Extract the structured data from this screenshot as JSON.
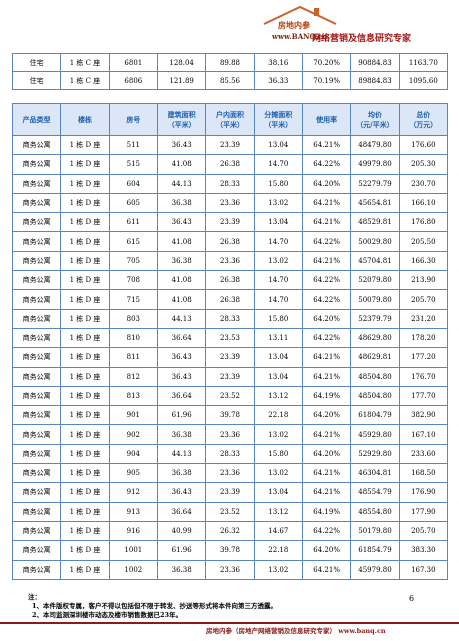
{
  "header": {
    "brand": "房地内参",
    "url": "www.BANQ.cn",
    "slogan": "网络营销及信息研究专家"
  },
  "table1": {
    "rows": [
      [
        "住宅",
        "1 栋 C 座",
        "6801",
        "128.04",
        "89.88",
        "38.16",
        "70.20%",
        "90884.83",
        "1163.70"
      ],
      [
        "住宅",
        "1 栋 C 座",
        "6806",
        "121.89",
        "85.56",
        "36.33",
        "70.19%",
        "89884.83",
        "1095.60"
      ]
    ]
  },
  "table2": {
    "columns": [
      "产品类型",
      "楼栋",
      "房号",
      "建筑面积\n（平米）",
      "户内面积\n（平米）",
      "分摊面积\n（平米）",
      "使用率",
      "均价\n（元/平米）",
      "总价\n（万元）"
    ],
    "rows": [
      [
        "商务公寓",
        "1 栋 D 座",
        "511",
        "36.43",
        "23.39",
        "13.04",
        "64.21%",
        "48479.80",
        "176.60"
      ],
      [
        "商务公寓",
        "1 栋 D 座",
        "515",
        "41.08",
        "26.38",
        "14.70",
        "64.22%",
        "49979.80",
        "205.30"
      ],
      [
        "商务公寓",
        "1 栋 D 座",
        "604",
        "44.13",
        "28.33",
        "15.80",
        "64.20%",
        "52279.79",
        "230.70"
      ],
      [
        "商务公寓",
        "1 栋 D 座",
        "605",
        "36.38",
        "23.36",
        "13.02",
        "64.21%",
        "45654.81",
        "166.10"
      ],
      [
        "商务公寓",
        "1 栋 D 座",
        "611",
        "36.43",
        "23.39",
        "13.04",
        "64.21%",
        "48529.81",
        "176.80"
      ],
      [
        "商务公寓",
        "1 栋 D 座",
        "615",
        "41.08",
        "26.38",
        "14.70",
        "64.22%",
        "50029.80",
        "205.50"
      ],
      [
        "商务公寓",
        "1 栋 D 座",
        "705",
        "36.38",
        "23.36",
        "13.02",
        "64.21%",
        "45704.81",
        "166.30"
      ],
      [
        "商务公寓",
        "1 栋 D 座",
        "708",
        "41.08",
        "26.38",
        "14.70",
        "64.22%",
        "52079.80",
        "213.90"
      ],
      [
        "商务公寓",
        "1 栋 D 座",
        "715",
        "41.08",
        "26.38",
        "14.70",
        "64.22%",
        "50079.80",
        "205.70"
      ],
      [
        "商务公寓",
        "1 栋 D 座",
        "803",
        "44.13",
        "28.33",
        "15.80",
        "64.20%",
        "52379.79",
        "231.20"
      ],
      [
        "商务公寓",
        "1 栋 D 座",
        "810",
        "36.64",
        "23.53",
        "13.11",
        "64.22%",
        "48629.80",
        "178.20"
      ],
      [
        "商务公寓",
        "1 栋 D 座",
        "811",
        "36.43",
        "23.39",
        "13.04",
        "64.21%",
        "48629.81",
        "177.20"
      ],
      [
        "商务公寓",
        "1 栋 D 座",
        "812",
        "36.43",
        "23.39",
        "13.04",
        "64.21%",
        "48504.80",
        "176.70"
      ],
      [
        "商务公寓",
        "1 栋 D 座",
        "813",
        "36.64",
        "23.52",
        "13.12",
        "64.19%",
        "48504.80",
        "177.70"
      ],
      [
        "商务公寓",
        "1 栋 D 座",
        "901",
        "61.96",
        "39.78",
        "22.18",
        "64.20%",
        "61804.79",
        "382.90"
      ],
      [
        "商务公寓",
        "1 栋 D 座",
        "902",
        "36.38",
        "23.36",
        "13.02",
        "64.21%",
        "45929.80",
        "167.10"
      ],
      [
        "商务公寓",
        "1 栋 D 座",
        "904",
        "44.13",
        "28.33",
        "15.80",
        "64.20%",
        "52929.80",
        "233.60"
      ],
      [
        "商务公寓",
        "1 栋 D 座",
        "905",
        "36.38",
        "23.36",
        "13.02",
        "64.21%",
        "46304.81",
        "168.50"
      ],
      [
        "商务公寓",
        "1 栋 D 座",
        "912",
        "36.43",
        "23.39",
        "13.04",
        "64.21%",
        "48554.79",
        "176.90"
      ],
      [
        "商务公寓",
        "1 栋 D 座",
        "913",
        "36.64",
        "23.52",
        "13.12",
        "64.19%",
        "48554.80",
        "177.90"
      ],
      [
        "商务公寓",
        "1 栋 D 座",
        "916",
        "40.99",
        "26.32",
        "14.67",
        "64.22%",
        "50179.80",
        "205.70"
      ],
      [
        "商务公寓",
        "1 栋 D 座",
        "1001",
        "61.96",
        "39.78",
        "22.18",
        "64.20%",
        "61854.79",
        "383.30"
      ],
      [
        "商务公寓",
        "1 栋 D 座",
        "1002",
        "36.38",
        "23.36",
        "13.02",
        "64.21%",
        "45979.80",
        "167.30"
      ]
    ]
  },
  "notes": {
    "label": "注：",
    "items": [
      "1、本件版权专属，客户不得以包括但不限于转发、抄送等形式将本件向第三方透露。",
      "2、本司监测深圳楼市动态及楼市销售数据已23年。"
    ]
  },
  "page_number": "6",
  "footer": "房地内参（房地产网络营销及信息研究专家） www.banq.cn"
}
